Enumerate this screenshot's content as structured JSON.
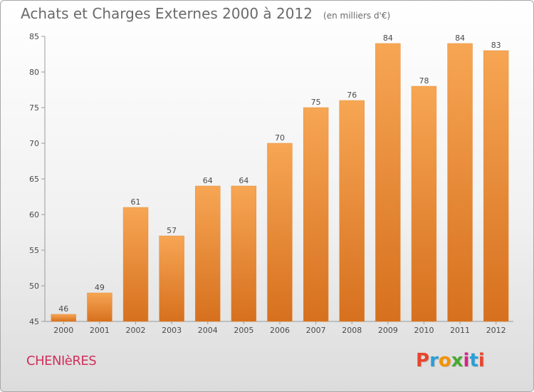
{
  "header": {
    "title": "Achats et Charges Externes 2000 à 2012",
    "subtitle": "(en milliers d'€)"
  },
  "footer": {
    "commune": "CHENIèRES",
    "logo_text": "Proxiti",
    "logo_colors": [
      "#e8452c",
      "#2a9fd8",
      "#f29400",
      "#4aa832",
      "#d6238a",
      "#2a9fd8",
      "#e8452c"
    ]
  },
  "chart_data": {
    "type": "bar",
    "title": "Achats et Charges Externes 2000 à 2012",
    "subtitle": "(en milliers d'€)",
    "categories": [
      "2000",
      "2001",
      "2002",
      "2003",
      "2004",
      "2005",
      "2006",
      "2007",
      "2008",
      "2009",
      "2010",
      "2011",
      "2012"
    ],
    "values": [
      46,
      49,
      61,
      57,
      64,
      64,
      70,
      75,
      76,
      84,
      78,
      84,
      83
    ],
    "ylim": [
      45,
      85
    ],
    "yticks": [
      45,
      50,
      55,
      60,
      65,
      70,
      75,
      80,
      85
    ],
    "grid": false,
    "bar_color_top": "#f7a654",
    "bar_color_bottom": "#d6701e",
    "data_labels": true
  }
}
